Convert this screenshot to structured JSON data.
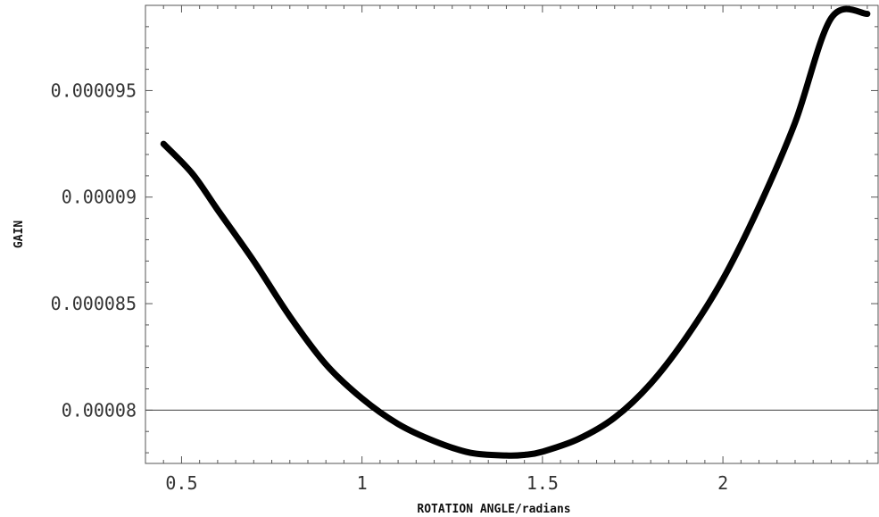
{
  "chart_data": {
    "type": "line",
    "title": "",
    "xlabel": "ROTATION ANGLE/radians",
    "ylabel": "GAIN",
    "xlim": [
      0.4,
      2.43
    ],
    "ylim": [
      7.75e-05,
      9.9e-05
    ],
    "grid": false,
    "reference_line": {
      "y": 8e-05
    },
    "x_ticks": [
      {
        "value": 0.5,
        "label": "0.5"
      },
      {
        "value": 1,
        "label": "1"
      },
      {
        "value": 1.5,
        "label": "1.5"
      },
      {
        "value": 2,
        "label": "2"
      }
    ],
    "y_ticks": [
      {
        "value": 8e-05,
        "label": "0.00008"
      },
      {
        "value": 8.5e-05,
        "label": "0.000085"
      },
      {
        "value": 9e-05,
        "label": "0.00009"
      },
      {
        "value": 9.5e-05,
        "label": "0.000095"
      }
    ],
    "series": [
      {
        "color": "#000000",
        "x": [
          0.45,
          0.53,
          0.6,
          0.7,
          0.8,
          0.9,
          1.0,
          1.1,
          1.2,
          1.3,
          1.4,
          1.45,
          1.5,
          1.6,
          1.7,
          1.8,
          1.9,
          2.0,
          2.1,
          2.2,
          2.3,
          2.4
        ],
        "y": [
          9.25e-05,
          9.11e-05,
          8.94e-05,
          8.7e-05,
          8.44e-05,
          8.215e-05,
          8.055e-05,
          7.935e-05,
          7.855e-05,
          7.8e-05,
          7.787e-05,
          7.79e-05,
          7.805e-05,
          7.865e-05,
          7.965e-05,
          8.125e-05,
          8.345e-05,
          8.615e-05,
          8.955e-05,
          9.35e-05,
          9.84e-05,
          9.86e-05
        ]
      }
    ]
  }
}
